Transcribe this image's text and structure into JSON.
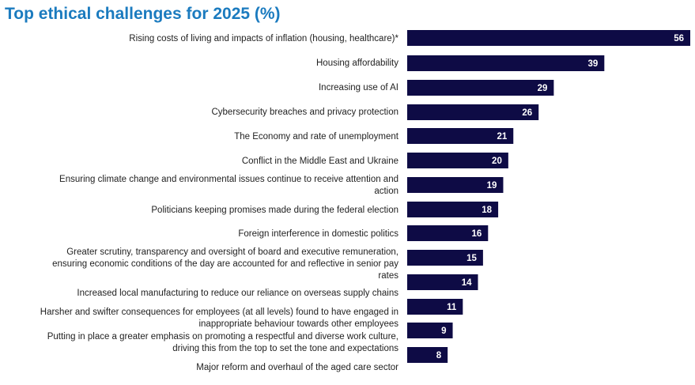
{
  "chart_data": {
    "type": "bar",
    "orientation": "horizontal",
    "title": "Top ethical challenges for 2025 (%)",
    "bar_color": "#0e0b45",
    "title_color": "#1b7bbf",
    "grid": false,
    "categories": [
      [
        "Rising costs of living and impacts of inflation (housing, healthcare)*"
      ],
      [
        "Housing affordability"
      ],
      [
        "Increasing use of AI"
      ],
      [
        "Cybersecurity breaches and privacy protection"
      ],
      [
        "The Economy and rate of unemployment"
      ],
      [
        "Conflict in the Middle East and Ukraine"
      ],
      [
        "Ensuring climate change and environmental issues continue to receive attention and",
        "action"
      ],
      [
        "Politicians keeping promises made during the federal election"
      ],
      [
        "Foreign interference in domestic politics"
      ],
      [
        "Greater scrutiny, transparency and oversight of board and executive remuneration,",
        "ensuring economic conditions of the day are accounted for and reflective in senior pay",
        "rates"
      ],
      [
        "Increased local manufacturing to reduce our reliance on overseas supply chains"
      ],
      [
        "Harsher and swifter consequences for employees (at all levels) found to have engaged in",
        "inappropriate behaviour towards other employees"
      ],
      [
        "Putting in place a greater emphasis on promoting a respectful and diverse work culture,",
        "driving this from the top to set the tone and expectations"
      ],
      [
        "Major reform and overhaul of the aged care sector"
      ]
    ],
    "values": [
      56,
      39,
      29,
      26,
      21,
      20,
      19,
      18,
      16,
      15,
      14,
      11,
      9,
      8
    ],
    "xlim": [
      0,
      56
    ]
  }
}
